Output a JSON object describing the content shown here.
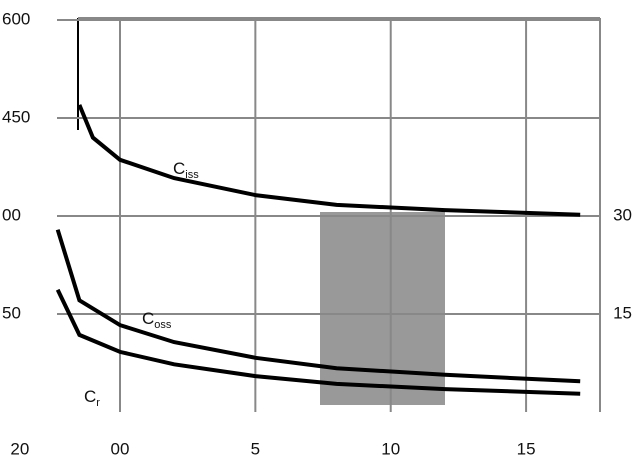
{
  "chart_data": {
    "type": "line",
    "xlim": [
      -4.4,
      18.1
    ],
    "xticks": [
      {
        "value": -3.7,
        "label": "20"
      },
      {
        "value": 0,
        "label": "00"
      },
      5,
      10,
      15
    ],
    "ylim": [
      0,
      600
    ],
    "yticks": [
      {
        "value": 150,
        "label": "50"
      },
      {
        "value": 300,
        "label": "00"
      },
      450,
      600
    ],
    "y2lim": [
      0,
      60
    ],
    "y2ticks": [
      15,
      30
    ],
    "grid": true,
    "annotations": [
      {
        "text": "C",
        "sub": "iss"
      },
      {
        "text": "C",
        "sub": "oss"
      },
      {
        "text": "C",
        "sub": "r"
      }
    ],
    "series": [
      {
        "color": "#000000",
        "x": [
          -1.5,
          -1,
          0,
          2,
          5,
          8,
          12,
          17
        ],
        "values": [
          470,
          420,
          386,
          358,
          332,
          317,
          309,
          302
        ]
      },
      {
        "axis": "y2",
        "color": "#000000",
        "x": [
          -2.3,
          -1.5,
          0,
          2,
          5,
          8,
          12,
          17
        ],
        "values": [
          27.9,
          17.1,
          13.3,
          10.7,
          8.3,
          6.7,
          5.7,
          4.7
        ]
      },
      {
        "axis": "y2",
        "color": "#000000",
        "x": [
          -2.3,
          -1.5,
          0,
          2,
          5,
          8,
          12,
          17
        ],
        "values": [
          18.7,
          11.8,
          9.2,
          7.3,
          5.5,
          4.3,
          3.5,
          2.8
        ]
      }
    ]
  }
}
